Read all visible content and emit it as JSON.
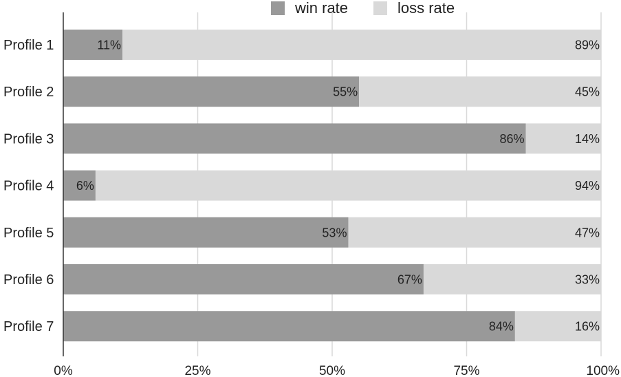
{
  "chart_data": {
    "type": "bar",
    "orientation": "horizontal",
    "stacked": true,
    "categories": [
      "Profile 1",
      "Profile 2",
      "Profile 3",
      "Profile 4",
      "Profile 5",
      "Profile 6",
      "Profile 7"
    ],
    "series": [
      {
        "name": "win rate",
        "values": [
          11,
          55,
          86,
          6,
          53,
          67,
          84
        ],
        "color": "#999999"
      },
      {
        "name": "loss rate",
        "values": [
          89,
          45,
          14,
          94,
          47,
          33,
          16
        ],
        "color": "#d9d9d9"
      }
    ],
    "xlim": [
      0,
      100
    ],
    "x_ticks": [
      0,
      25,
      50,
      75,
      100
    ],
    "x_tick_labels": [
      "0%",
      "25%",
      "50%",
      "75%",
      "100%"
    ],
    "value_suffix": "%",
    "legend": "top",
    "grid": true,
    "colors": {
      "grid": "#d9d9d9",
      "axis": "#333333"
    }
  }
}
